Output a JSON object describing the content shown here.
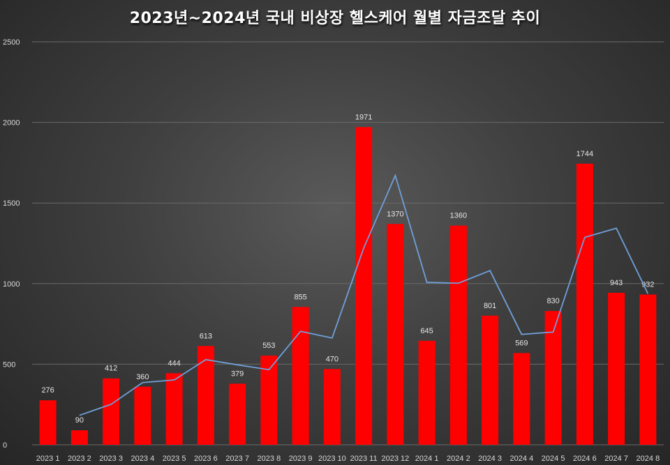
{
  "chart_data": {
    "type": "bar",
    "title": "2023년~2024년 국내 비상장 헬스케어 월별 자금조달 추이",
    "xlabel": "",
    "ylabel": "",
    "ylim": [
      0,
      2500
    ],
    "yticks": [
      0,
      500,
      1000,
      1500,
      2000,
      2500
    ],
    "grid": true,
    "categories": [
      "2023 1",
      "2023 2",
      "2023 3",
      "2023 4",
      "2023 5",
      "2023 6",
      "2023 7",
      "2023 8",
      "2023 9",
      "2023 10",
      "2023 11",
      "2023 12",
      "2024 1",
      "2024 2",
      "2024 3",
      "2024 4",
      "2024 5",
      "2024 6",
      "2024 7",
      "2024 8"
    ],
    "series": [
      {
        "type": "bar",
        "color": "#ff0000",
        "values": [
          276,
          90,
          412,
          360,
          444,
          613,
          379,
          553,
          855,
          470,
          1971,
          1370,
          645,
          1360,
          801,
          569,
          830,
          1744,
          943,
          932
        ],
        "data_labels": true
      },
      {
        "type": "line",
        "color": "#6fa0d8",
        "trend": "2-period moving average",
        "values": [
          null,
          183,
          251,
          386,
          402,
          528.5,
          496,
          466,
          704,
          662.5,
          1220.5,
          1670.5,
          1007.5,
          1002.5,
          1080.5,
          685,
          699.5,
          1287,
          1343.5,
          937.5
        ]
      }
    ]
  }
}
